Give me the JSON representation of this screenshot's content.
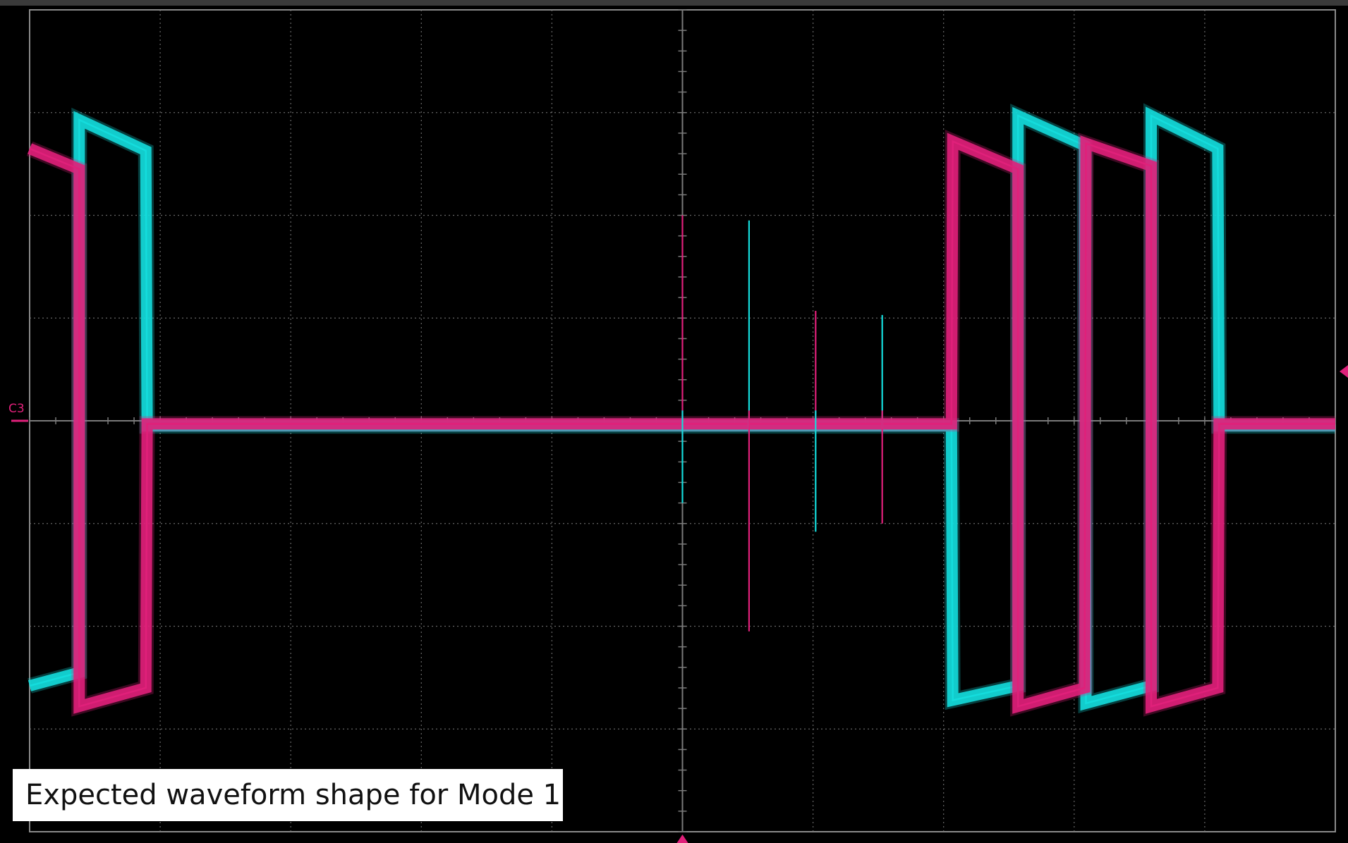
{
  "screen": {
    "caption": "Expected waveform shape for Mode 1",
    "channel_label": "C3",
    "colors": {
      "background": "#000000",
      "grid": "#7a7a7a",
      "frame": "#8a8a8a",
      "trace_cyan": "#14dcdc",
      "trace_magenta": "#e0207a",
      "marker": "#e0207a"
    },
    "divisions": {
      "horizontal": 10,
      "vertical": 8
    }
  },
  "chart_data": {
    "type": "line",
    "xlabel": "",
    "ylabel": "",
    "xlim": [
      0,
      10
    ],
    "ylim": [
      -4,
      4
    ],
    "grid": true,
    "series": [
      {
        "color": "#14dcdc",
        "points": [
          [
            0,
            -2.58
          ],
          [
            0.38,
            -2.45
          ],
          [
            0.38,
            2.93
          ],
          [
            0.89,
            2.63
          ],
          [
            0.89,
            2.63
          ],
          [
            0.9,
            -0.05
          ],
          [
            7.06,
            -0.05
          ],
          [
            7.07,
            -2.72
          ],
          [
            7.57,
            -2.58
          ],
          [
            7.57,
            2.97
          ],
          [
            8.08,
            2.68
          ],
          [
            8.08,
            2.68
          ],
          [
            8.09,
            -2.75
          ],
          [
            8.59,
            -2.58
          ],
          [
            8.59,
            2.97
          ],
          [
            9.1,
            2.65
          ],
          [
            9.1,
            2.65
          ],
          [
            9.11,
            -0.05
          ],
          [
            10,
            -0.05
          ]
        ]
      },
      {
        "color": "#e0207a",
        "points": [
          [
            0,
            2.65
          ],
          [
            0.38,
            2.45
          ],
          [
            0.38,
            -2.78
          ],
          [
            0.89,
            -2.6
          ],
          [
            0.89,
            -2.6
          ],
          [
            0.9,
            -0.03
          ],
          [
            7.06,
            -0.03
          ],
          [
            7.07,
            2.72
          ],
          [
            7.57,
            2.45
          ],
          [
            7.57,
            -2.78
          ],
          [
            8.08,
            -2.6
          ],
          [
            8.08,
            -2.6
          ],
          [
            8.09,
            2.7
          ],
          [
            8.59,
            2.48
          ],
          [
            8.59,
            -2.78
          ],
          [
            9.1,
            -2.6
          ],
          [
            9.1,
            -2.6
          ],
          [
            9.11,
            -0.03
          ],
          [
            10,
            -0.03
          ]
        ]
      }
    ],
    "spikes": [
      {
        "x": 5.0,
        "color": "#e0207a",
        "top": 2.0,
        "bottom": -0.2
      },
      {
        "x": 5.0,
        "color": "#14dcdc",
        "top": 0.1,
        "bottom": -0.8
      },
      {
        "x": 5.51,
        "color": "#14dcdc",
        "top": 1.95,
        "bottom": -0.1
      },
      {
        "x": 5.51,
        "color": "#e0207a",
        "top": 0.1,
        "bottom": -2.05
      },
      {
        "x": 6.02,
        "color": "#e0207a",
        "top": 1.07,
        "bottom": -0.1
      },
      {
        "x": 6.02,
        "color": "#14dcdc",
        "top": 0.1,
        "bottom": -1.08
      },
      {
        "x": 6.53,
        "color": "#14dcdc",
        "top": 1.03,
        "bottom": -0.1
      },
      {
        "x": 6.53,
        "color": "#e0207a",
        "top": 0.1,
        "bottom": -1.0
      }
    ],
    "ground_level": 0
  }
}
